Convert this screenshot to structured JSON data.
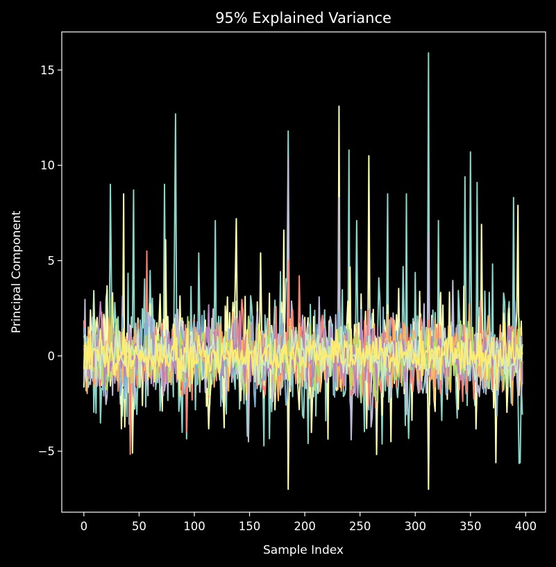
{
  "chart_data": {
    "type": "line",
    "title": "95% Explained Variance",
    "xlabel": "Sample Index",
    "ylabel": "Principal Component",
    "xlim": [
      -20,
      418
    ],
    "ylim": [
      -8.2,
      17.0
    ],
    "x_ticks": [
      0,
      50,
      100,
      150,
      200,
      250,
      300,
      350,
      400
    ],
    "y_ticks": [
      -5,
      0,
      5,
      10,
      15
    ],
    "x_tick_labels": [
      "0",
      "50",
      "100",
      "150",
      "200",
      "250",
      "300",
      "350",
      "400"
    ],
    "y_tick_labels": [
      "−5",
      "0",
      "5",
      "10",
      "15"
    ],
    "grid": false,
    "legend": "none",
    "background": "#000000",
    "colors": [
      "#8dd3c7",
      "#feffb3",
      "#bfbbd9",
      "#fa8174",
      "#81b1d2",
      "#fdb462",
      "#b3de69",
      "#bc82bd",
      "#ccebc4",
      "#ffed6f"
    ],
    "n_samples": 398,
    "series": [
      {
        "amplitude": 2.5,
        "seed": 11,
        "peaks": [
          [
            24,
            9.0
          ],
          [
            45,
            8.7
          ],
          [
            73,
            9.0
          ],
          [
            83,
            12.7
          ],
          [
            104,
            5.4
          ],
          [
            119,
            7.1
          ],
          [
            185,
            11.8
          ],
          [
            203,
            -4.6
          ],
          [
            240,
            10.8
          ],
          [
            247,
            7.1
          ],
          [
            275,
            8.5
          ],
          [
            292,
            8.5
          ],
          [
            312,
            15.9
          ],
          [
            321,
            7.1
          ],
          [
            345,
            9.4
          ],
          [
            350,
            10.7
          ],
          [
            356,
            9.1
          ],
          [
            395,
            -5.6
          ]
        ]
      },
      {
        "amplitude": 2.0,
        "seed": 23,
        "peaks": [
          [
            36,
            8.5
          ],
          [
            44,
            -5.1
          ],
          [
            74,
            6.1
          ],
          [
            138,
            7.2
          ],
          [
            160,
            5.4
          ],
          [
            181,
            6.6
          ],
          [
            185,
            -7.0
          ],
          [
            231,
            13.1
          ],
          [
            258,
            10.5
          ],
          [
            278,
            -4.5
          ],
          [
            312,
            -7.0
          ],
          [
            360,
            6.9
          ],
          [
            373,
            -5.6
          ],
          [
            393,
            7.9
          ]
        ]
      },
      {
        "amplitude": 1.6,
        "seed": 37,
        "peaks": [
          [
            185,
            10.4
          ],
          [
            231,
            8.3
          ],
          [
            312,
            6.4
          ]
        ]
      },
      {
        "amplitude": 1.5,
        "seed": 41,
        "peaks": [
          [
            57,
            5.5
          ],
          [
            93,
            -4.0
          ],
          [
            185,
            5.0
          ]
        ]
      },
      {
        "amplitude": 1.4,
        "seed": 53,
        "peaks": []
      },
      {
        "amplitude": 1.2,
        "seed": 61,
        "peaks": []
      },
      {
        "amplitude": 1.1,
        "seed": 71,
        "peaks": []
      },
      {
        "amplitude": 1.0,
        "seed": 83,
        "peaks": []
      },
      {
        "amplitude": 0.9,
        "seed": 97,
        "peaks": []
      },
      {
        "amplitude": 0.8,
        "seed": 103,
        "peaks": []
      }
    ]
  }
}
